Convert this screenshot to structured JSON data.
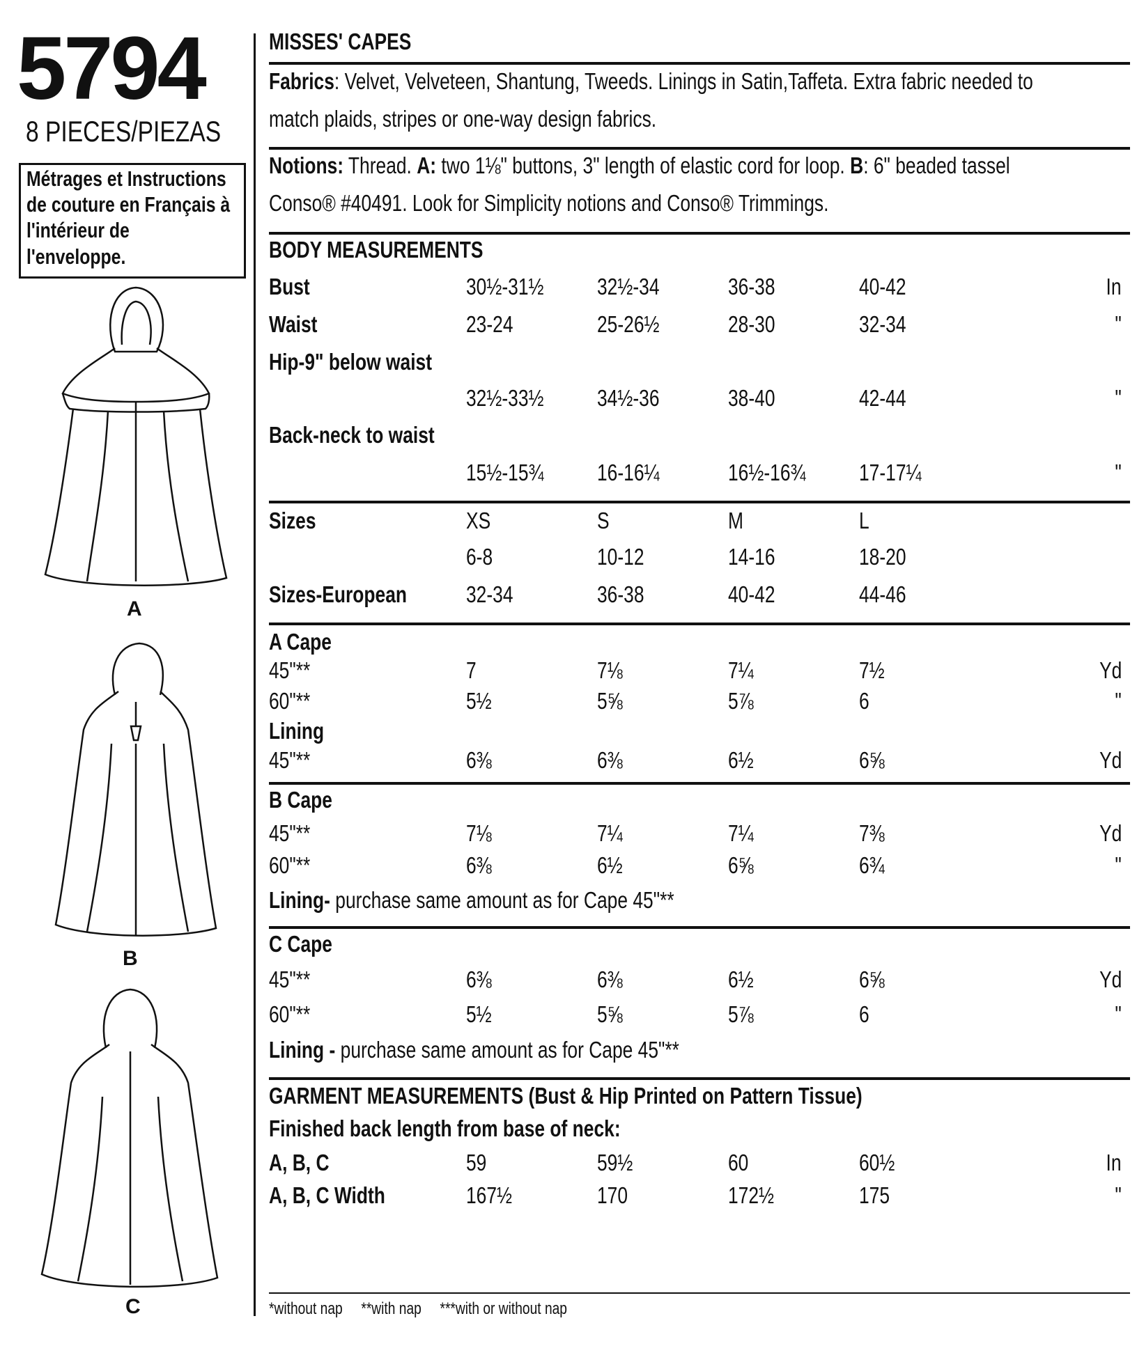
{
  "header": {
    "pattern_number": "5794",
    "pieces": "8 PIECES/PIEZAS",
    "french_note": [
      "Métrages et Instructions",
      "de couture en Français à",
      "l'intérieur de",
      "l'enveloppe."
    ],
    "title": "MISSES' CAPES"
  },
  "fabrics": {
    "label": "Fabrics",
    "line1": ": Velvet, Velveteen, Shantung, Tweeds. Linings in Satin,Taffeta. Extra fabric needed to",
    "line2": "match plaids, stripes or one-way design fabrics."
  },
  "notions": {
    "label": "Notions:",
    "line1_a": " Thread. ",
    "a": "A:",
    "line1_b": " two 1⅛\" buttons, 3\" length of elastic cord for loop. ",
    "b": "B",
    "line1_c": ": 6\" beaded tassel",
    "line2": "Conso® #40491. Look for Simplicity notions and Conso® Trimmings."
  },
  "body_measurements": {
    "heading": "BODY MEASUREMENTS",
    "rows": [
      {
        "label": "Bust",
        "values": [
          "30½-31½",
          "32½-34",
          "36-38",
          "40-42"
        ],
        "unit": "In"
      },
      {
        "label": "Waist",
        "values": [
          "23-24",
          "25-26½",
          "28-30",
          "32-34"
        ],
        "unit": "\""
      },
      {
        "label": "Hip-9\" below waist",
        "values": [
          "32½-33½",
          "34½-36",
          "38-40",
          "42-44"
        ],
        "unit": "\""
      },
      {
        "label": "Back-neck to waist",
        "values": [
          "15½-15¾",
          "16-16¼",
          "16½-16¾",
          "17-17¼"
        ],
        "unit": "\""
      }
    ]
  },
  "sizes": {
    "label": "Sizes",
    "letters": [
      "XS",
      "S",
      "M",
      "L"
    ],
    "numbers": [
      "6-8",
      "10-12",
      "14-16",
      "18-20"
    ],
    "european_label": "Sizes-European",
    "european": [
      "32-34",
      "36-38",
      "40-42",
      "44-46"
    ]
  },
  "a_cape": {
    "heading": "A Cape",
    "rows": [
      {
        "label": "45\"**",
        "values": [
          "7",
          "7⅛",
          "7¼",
          "7½"
        ],
        "unit": "Yd"
      },
      {
        "label": "60\"**",
        "values": [
          "5½",
          "5⅝",
          "5⅞",
          "6"
        ],
        "unit": "\""
      }
    ],
    "lining_heading": "Lining",
    "lining_row": {
      "label": "45\"**",
      "values": [
        "6⅜",
        "6⅜",
        "6½",
        "6⅝"
      ],
      "unit": "Yd"
    }
  },
  "b_cape": {
    "heading": "B Cape",
    "rows": [
      {
        "label": "45\"**",
        "values": [
          "7⅛",
          "7¼",
          "7¼",
          "7⅜"
        ],
        "unit": "Yd"
      },
      {
        "label": "60\"**",
        "values": [
          "6⅜",
          "6½",
          "6⅝",
          "6¾"
        ],
        "unit": "\""
      }
    ],
    "lining_label": "Lining-",
    "lining_text": " purchase same amount as for Cape 45\"**"
  },
  "c_cape": {
    "heading": "C Cape",
    "rows": [
      {
        "label": "45\"**",
        "values": [
          "6⅜",
          "6⅜",
          "6½",
          "6⅝"
        ],
        "unit": "Yd"
      },
      {
        "label": "60\"**",
        "values": [
          "5½",
          "5⅝",
          "5⅞",
          "6"
        ],
        "unit": "\""
      }
    ],
    "lining_label": "Lining -",
    "lining_text": " purchase same amount as for Cape 45\"**"
  },
  "garment_measurements": {
    "heading": "GARMENT MEASUREMENTS (Bust & Hip Printed on Pattern Tissue)",
    "subheading": "Finished back length from base of neck:",
    "rows": [
      {
        "label": "A, B, C",
        "values": [
          "59",
          "59½",
          "60",
          "60½"
        ],
        "unit": "In"
      },
      {
        "label": "A, B, C Width",
        "values": [
          "167½",
          "170",
          "172½",
          "175"
        ],
        "unit": "\""
      }
    ]
  },
  "footnote": "*without nap     **with nap     ***with or without nap",
  "views": [
    {
      "label": "A"
    },
    {
      "label": "B"
    },
    {
      "label": "C"
    }
  ]
}
